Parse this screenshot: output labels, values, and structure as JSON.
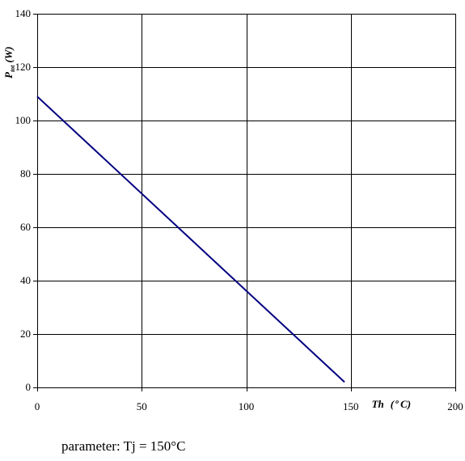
{
  "chart_data": {
    "type": "line",
    "x": [
      0,
      147
    ],
    "series": [
      {
        "values": [
          109,
          2
        ]
      }
    ],
    "xlim": [
      0,
      200
    ],
    "ylim": [
      0,
      140
    ],
    "xticks": [
      0,
      50,
      100,
      150,
      200
    ],
    "yticks": [
      0,
      20,
      40,
      60,
      80,
      100,
      120,
      140
    ],
    "x_tick_labels": [
      "0",
      "50",
      "100",
      "150",
      "200"
    ],
    "y_tick_labels": [
      "0",
      "20",
      "40",
      "60",
      "80",
      "100",
      "120",
      "140"
    ],
    "xlabel": {
      "symbol": "Th",
      "unit_open": "(",
      "degree": "o",
      "unit": "C)"
    },
    "ylabel": {
      "symbol": "P",
      "subscript": "tot",
      "unit": "(W)"
    },
    "annotation": "parameter: Tj = 150°C",
    "grid": true,
    "legend": "none",
    "line_color": "#000080",
    "grid_color": "#000000"
  }
}
